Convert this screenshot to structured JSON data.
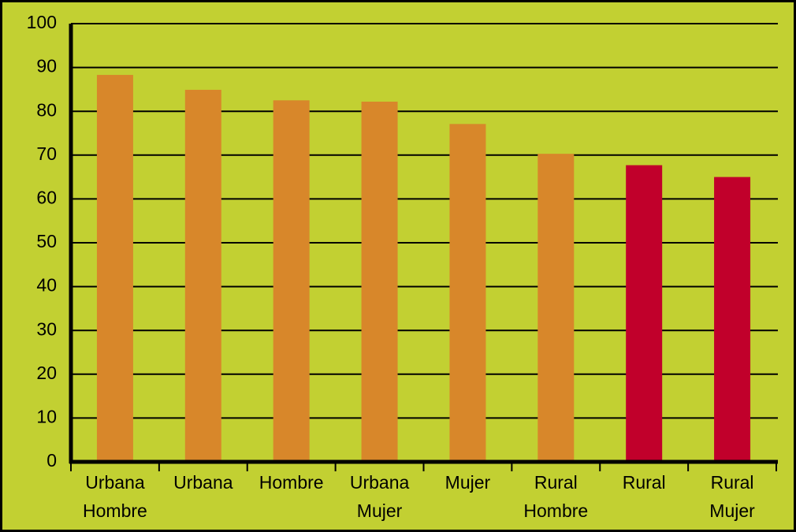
{
  "chart_data": {
    "type": "bar",
    "categories": [
      [
        "Urbana",
        "Hombre"
      ],
      [
        "Urbana"
      ],
      [
        "Hombre"
      ],
      [
        "Urbana",
        "Mujer"
      ],
      [
        "Mujer"
      ],
      [
        "Rural",
        "Hombre"
      ],
      [
        "Rural"
      ],
      [
        "Rural",
        "Mujer"
      ]
    ],
    "values": [
      88.3,
      84.9,
      82.5,
      82.2,
      77.1,
      70.3,
      67.7,
      65
    ],
    "colors": [
      "#d8872a",
      "#d8872a",
      "#d8872a",
      "#d8872a",
      "#d8872a",
      "#d8872a",
      "#c1002b",
      "#c1002b"
    ],
    "ylim": [
      0,
      100
    ],
    "yticks": [
      0,
      10,
      20,
      30,
      40,
      50,
      60,
      70,
      80,
      90,
      100
    ],
    "grid": true
  }
}
